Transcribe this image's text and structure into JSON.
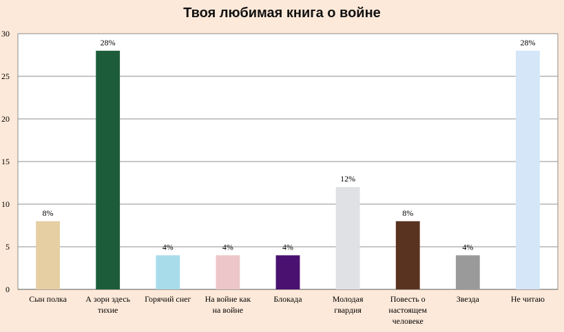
{
  "chart_data": {
    "type": "bar",
    "title": "Твоя любимая книга о войне",
    "xlabel": "",
    "ylabel": "",
    "ylim": [
      0,
      30
    ],
    "yticks": [
      0,
      5,
      10,
      15,
      20,
      25,
      30
    ],
    "grid": true,
    "legend": "none",
    "categories": [
      "Сын полка",
      "А зори здесь тихие",
      "Горячий снег",
      "На войне как на войне",
      "Блокада",
      "Молодая гвардия",
      "Повесть о настоящем человеке",
      "Звезда",
      "Не читаю"
    ],
    "values": [
      8,
      28,
      4,
      4,
      4,
      12,
      8,
      4,
      28
    ],
    "data_labels": [
      "8%",
      "28%",
      "4%",
      "4%",
      "4%",
      "12%",
      "8%",
      "4%",
      "28%"
    ],
    "colors": [
      "#e6cfa3",
      "#1d5c3a",
      "#a8dcea",
      "#ecc6c8",
      "#4a1170",
      "#dfe1e4",
      "#5a3320",
      "#9a9a9a",
      "#d4e6f7"
    ],
    "plot_background": "#ffffff",
    "page_background": "#fde9d9"
  }
}
